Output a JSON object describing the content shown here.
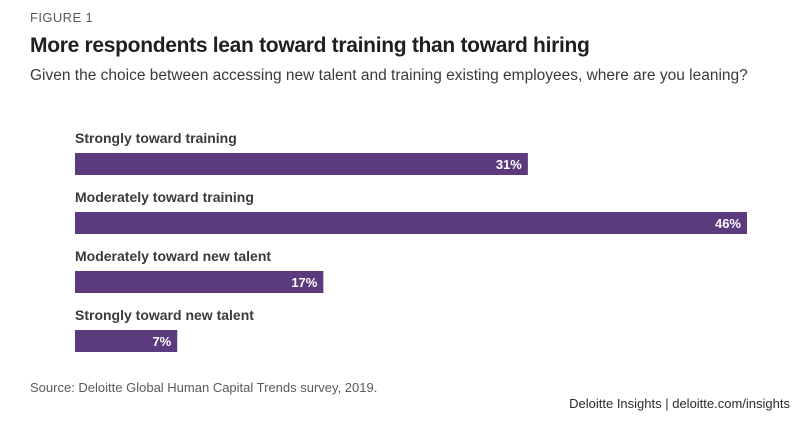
{
  "figure_label": "FIGURE 1",
  "source": "Source: Deloitte Global Human Capital Trends survey, 2019.",
  "credit": "Deloitte Insights | deloitte.com/insights",
  "colors": {
    "bar": "#5b3a7e"
  },
  "chart_data": {
    "type": "bar",
    "orientation": "horizontal",
    "title": "More respondents lean toward training than toward hiring",
    "subtitle": "Given the choice between accessing new talent and training existing employees, where are you leaning?",
    "categories": [
      "Strongly toward training",
      "Moderately toward training",
      "Moderately toward new talent",
      "Strongly toward new talent"
    ],
    "values": [
      31,
      46,
      17,
      7
    ],
    "value_labels": [
      "31%",
      "46%",
      "17%",
      "7%"
    ],
    "unit": "%",
    "xlim": [
      0,
      46
    ],
    "grid": false
  }
}
